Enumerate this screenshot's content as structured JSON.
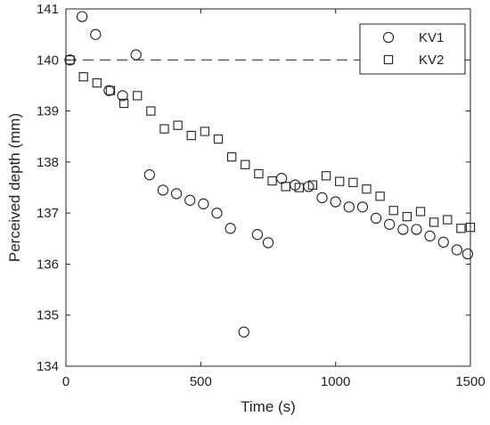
{
  "chart_data": {
    "type": "scatter",
    "title": "",
    "xlabel": "Time (s)",
    "ylabel": "Perceived depth (mm)",
    "xlim": [
      0,
      1500
    ],
    "ylim": [
      134,
      141
    ],
    "xticks": [
      0,
      500,
      1000,
      1500
    ],
    "yticks": [
      134,
      135,
      136,
      137,
      138,
      139,
      140,
      141
    ],
    "grid": false,
    "legend_position": "top-right",
    "reference_line": {
      "y": 140,
      "style": "dashed"
    },
    "series": [
      {
        "name": "KV1",
        "marker": "circle",
        "x": [
          15,
          60,
          110,
          160,
          210,
          260,
          310,
          360,
          410,
          460,
          510,
          560,
          610,
          660,
          710,
          750,
          800,
          850,
          900,
          950,
          1000,
          1050,
          1100,
          1150,
          1200,
          1250,
          1300,
          1350,
          1400,
          1450,
          1490
        ],
        "y": [
          140.0,
          140.85,
          140.5,
          139.4,
          139.3,
          140.1,
          137.75,
          137.45,
          137.38,
          137.25,
          137.18,
          137.0,
          136.7,
          134.67,
          136.58,
          136.42,
          137.68,
          137.55,
          137.52,
          137.3,
          137.22,
          137.12,
          137.12,
          136.9,
          136.78,
          136.68,
          136.68,
          136.55,
          136.43,
          136.28,
          136.2
        ]
      },
      {
        "name": "KV2",
        "marker": "square",
        "x": [
          15,
          65,
          115,
          165,
          215,
          265,
          315,
          365,
          415,
          465,
          515,
          565,
          615,
          665,
          715,
          765,
          815,
          865,
          915,
          965,
          1015,
          1065,
          1115,
          1165,
          1215,
          1265,
          1315,
          1365,
          1415,
          1465,
          1500
        ],
        "y": [
          140.0,
          139.67,
          139.55,
          139.4,
          139.15,
          139.3,
          139.0,
          138.65,
          138.72,
          138.52,
          138.6,
          138.45,
          138.1,
          137.95,
          137.77,
          137.63,
          137.52,
          137.5,
          137.55,
          137.73,
          137.62,
          137.6,
          137.47,
          137.33,
          137.05,
          136.93,
          137.03,
          136.82,
          136.87,
          136.7,
          136.72
        ]
      }
    ]
  }
}
